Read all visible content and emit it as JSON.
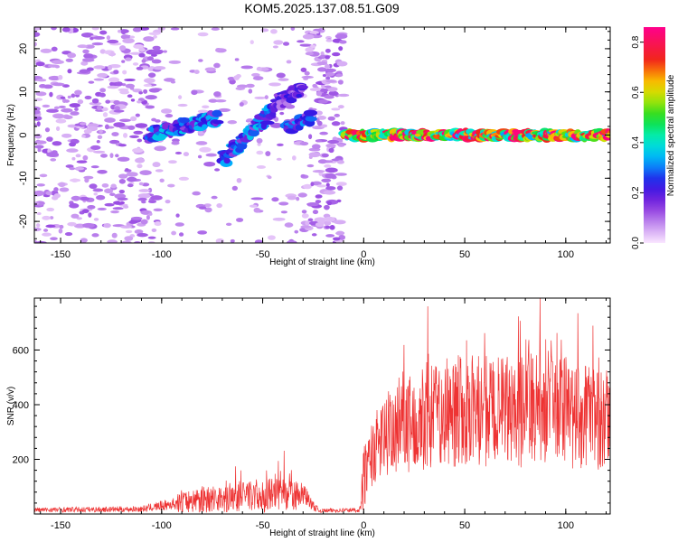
{
  "title": "KOM5.2025.137.08.51.G09",
  "chart_data": [
    {
      "type": "heatmap",
      "xlabel": "Height of straight line (km)",
      "ylabel": "Frequency (Hz)",
      "xlim": [
        -163,
        122
      ],
      "ylim": [
        -25,
        25
      ],
      "xticks": [
        -150,
        -100,
        -50,
        0,
        50,
        100
      ],
      "yticks": [
        -20,
        -10,
        0,
        10,
        20
      ],
      "colorbar": {
        "label": "Normalized spectral amplitude",
        "range": [
          0,
          0.86
        ],
        "ticks": [
          0.0,
          0.2,
          0.4,
          0.6,
          0.8
        ]
      },
      "features": [
        {
          "x": [
            -107,
            -72
          ],
          "freq_start": 0,
          "freq_end": 4,
          "amplitude": 0.3
        },
        {
          "x": [
            -70,
            -44
          ],
          "freq_start": -6,
          "freq_end": 6,
          "amplitude": 0.3
        },
        {
          "x": [
            -44,
            -30
          ],
          "freq_start": 7,
          "freq_end": 11,
          "amplitude": 0.2
        },
        {
          "x": [
            -38,
            -26
          ],
          "freq_start": 2,
          "freq_end": 4,
          "amplitude": 0.3
        },
        {
          "x": [
            -10,
            122
          ],
          "freq_start": 0,
          "freq_end": 0,
          "amplitude": 0.75
        }
      ]
    },
    {
      "type": "line",
      "xlabel": "Height of straight line (km)",
      "ylabel": "SNR (v/v)",
      "xlim": [
        -163,
        122
      ],
      "ylim": [
        0,
        790
      ],
      "xticks": [
        -150,
        -100,
        -50,
        0,
        50,
        100
      ],
      "yticks": [
        200,
        400,
        600
      ],
      "color": "#ee3333",
      "series": [
        {
          "x": [
            -163,
            -110,
            -100,
            -80,
            -60,
            -40,
            -30,
            -22,
            -2,
            0,
            4,
            10,
            20,
            30,
            50,
            70,
            90,
            110,
            122
          ],
          "y": [
            15,
            18,
            30,
            55,
            65,
            70,
            60,
            12,
            15,
            130,
            220,
            280,
            330,
            360,
            380,
            370,
            390,
            360,
            340
          ]
        }
      ]
    }
  ]
}
